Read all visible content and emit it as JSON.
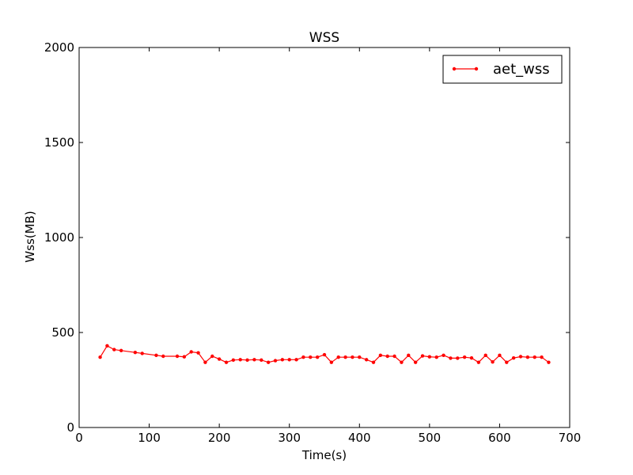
{
  "chart_data": {
    "type": "line",
    "title": "WSS",
    "xlabel": "Time(s)",
    "ylabel": "Wss(MB)",
    "xlim": [
      0,
      700
    ],
    "ylim": [
      0,
      2000
    ],
    "xticks": [
      0,
      100,
      200,
      300,
      400,
      500,
      600,
      700
    ],
    "yticks": [
      0,
      500,
      1000,
      1500,
      2000
    ],
    "grid": false,
    "legend_position": "top-right",
    "series": [
      {
        "name": "aet_wss",
        "color": "#ff0000",
        "marker": "point",
        "x": [
          30,
          40,
          50,
          60,
          80,
          90,
          110,
          120,
          140,
          150,
          160,
          170,
          180,
          190,
          200,
          210,
          220,
          230,
          240,
          250,
          260,
          270,
          280,
          290,
          300,
          310,
          320,
          330,
          340,
          350,
          360,
          370,
          380,
          390,
          400,
          410,
          420,
          430,
          440,
          450,
          460,
          470,
          480,
          490,
          500,
          510,
          520,
          530,
          540,
          550,
          560,
          570,
          580,
          590,
          600,
          610,
          620,
          630,
          640,
          650,
          660,
          670
        ],
        "y": [
          370,
          430,
          410,
          405,
          395,
          390,
          380,
          375,
          375,
          372,
          398,
          393,
          343,
          375,
          360,
          343,
          355,
          357,
          355,
          357,
          355,
          343,
          352,
          357,
          357,
          357,
          370,
          370,
          370,
          383,
          343,
          370,
          370,
          370,
          370,
          357,
          343,
          380,
          375,
          375,
          343,
          380,
          343,
          377,
          372,
          370,
          380,
          365,
          365,
          370,
          366,
          343,
          380,
          345,
          380,
          343,
          366,
          373,
          370,
          370,
          370,
          343
        ]
      }
    ]
  }
}
